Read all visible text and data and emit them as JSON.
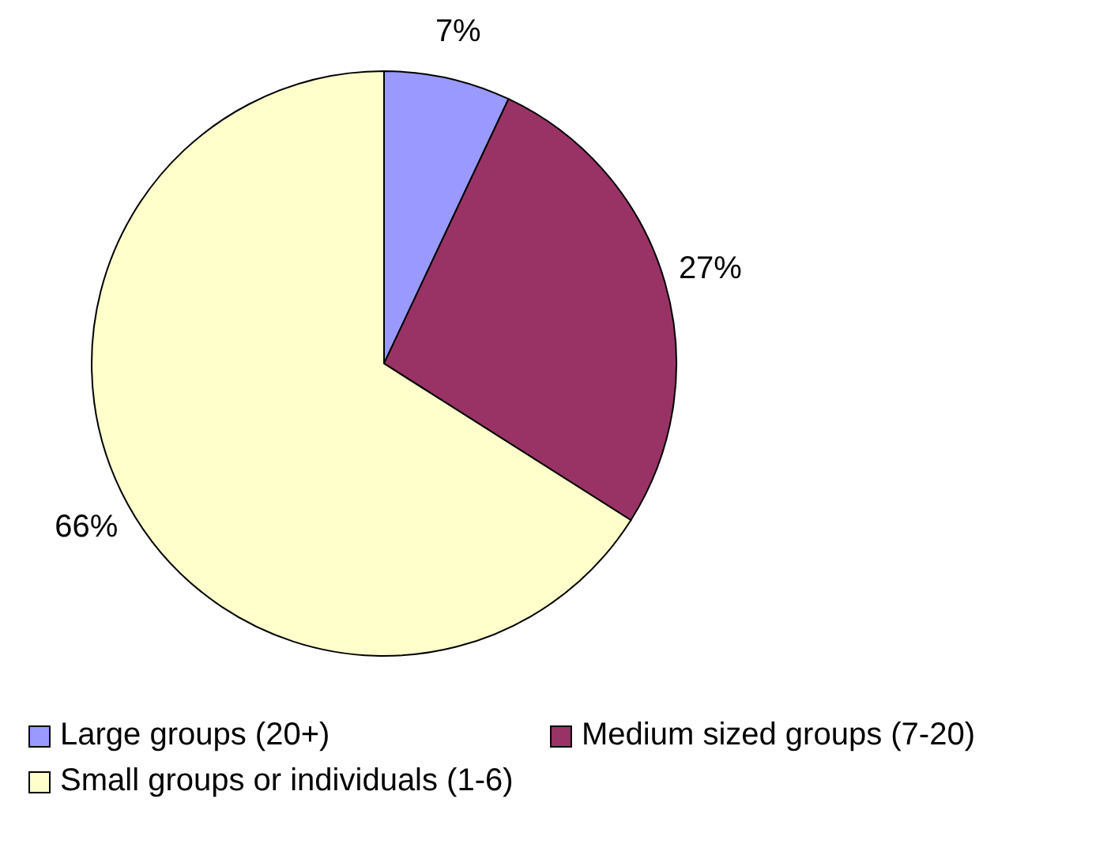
{
  "chart_data": {
    "type": "pie",
    "categories": [
      "Large groups (20+)",
      "Medium sized groups (7-20)",
      "Small groups or individuals (1-6)"
    ],
    "values": [
      7,
      27,
      66
    ],
    "colors": [
      "#9999ff",
      "#993366",
      "#ffffcc"
    ],
    "value_labels": [
      "7%",
      "27%",
      "66%"
    ],
    "legend": "bottom"
  }
}
